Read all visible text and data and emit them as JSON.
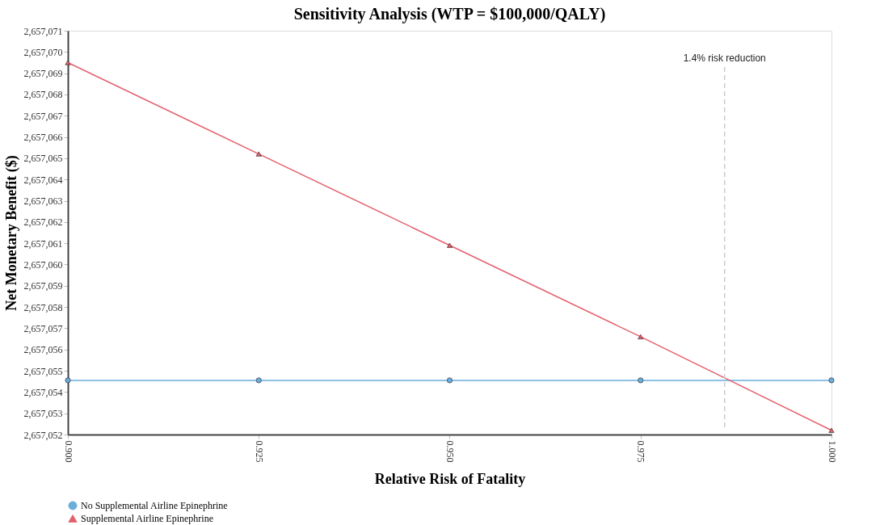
{
  "chart_data": {
    "type": "line",
    "title": "Sensitivity Analysis (WTP = $100,000/QALY)",
    "xlabel": "Relative Risk of Fatality",
    "ylabel": "Net Monetary Benefit ($)",
    "x": [
      0.9,
      0.925,
      0.95,
      0.975,
      1.0
    ],
    "series": [
      {
        "name": "No Supplemental Airline Epinephrine",
        "color": "#6aaddc",
        "marker": "circle",
        "values": [
          2657054.55,
          2657054.55,
          2657054.55,
          2657054.55,
          2657054.55
        ]
      },
      {
        "name": "Supplemental Airline Epinephrine",
        "color": "#e4606c",
        "marker": "triangle",
        "values": [
          2657069.5,
          2657065.2,
          2657060.9,
          2657056.6,
          2657052.2
        ]
      }
    ],
    "xlim": [
      0.9,
      1.0
    ],
    "xticks": [
      {
        "value": 0.9,
        "label": "0.900"
      },
      {
        "value": 0.925,
        "label": "0.925"
      },
      {
        "value": 0.95,
        "label": "0.950"
      },
      {
        "value": 0.975,
        "label": "0.975"
      },
      {
        "value": 1.0,
        "label": "1.000"
      }
    ],
    "ylim": [
      2657052,
      2657071
    ],
    "yticks": [
      {
        "value": 2657052,
        "label": "2,657,052"
      },
      {
        "value": 2657053,
        "label": "2,657,053"
      },
      {
        "value": 2657054,
        "label": "2,657,054"
      },
      {
        "value": 2657055,
        "label": "2,657,055"
      },
      {
        "value": 2657056,
        "label": "2,657,056"
      },
      {
        "value": 2657057,
        "label": "2,657,057"
      },
      {
        "value": 2657058,
        "label": "2,657,058"
      },
      {
        "value": 2657059,
        "label": "2,657,059"
      },
      {
        "value": 2657060,
        "label": "2,657,060"
      },
      {
        "value": 2657061,
        "label": "2,657,061"
      },
      {
        "value": 2657062,
        "label": "2,657,062"
      },
      {
        "value": 2657063,
        "label": "2,657,063"
      },
      {
        "value": 2657064,
        "label": "2,657,064"
      },
      {
        "value": 2657065,
        "label": "2,657,065"
      },
      {
        "value": 2657066,
        "label": "2,657,066"
      },
      {
        "value": 2657067,
        "label": "2,657,067"
      },
      {
        "value": 2657068,
        "label": "2,657,068"
      },
      {
        "value": 2657069,
        "label": "2,657,069"
      },
      {
        "value": 2657070,
        "label": "2,657,070"
      },
      {
        "value": 2657071,
        "label": "2,657,071"
      }
    ],
    "ref_lines": [
      {
        "axis": "x",
        "value": 0.986,
        "label": "1.4% risk reduction",
        "color": "#cccccc",
        "line_style": "dashed"
      }
    ],
    "grid": false,
    "legend": "bottom",
    "line_style": "solid"
  }
}
